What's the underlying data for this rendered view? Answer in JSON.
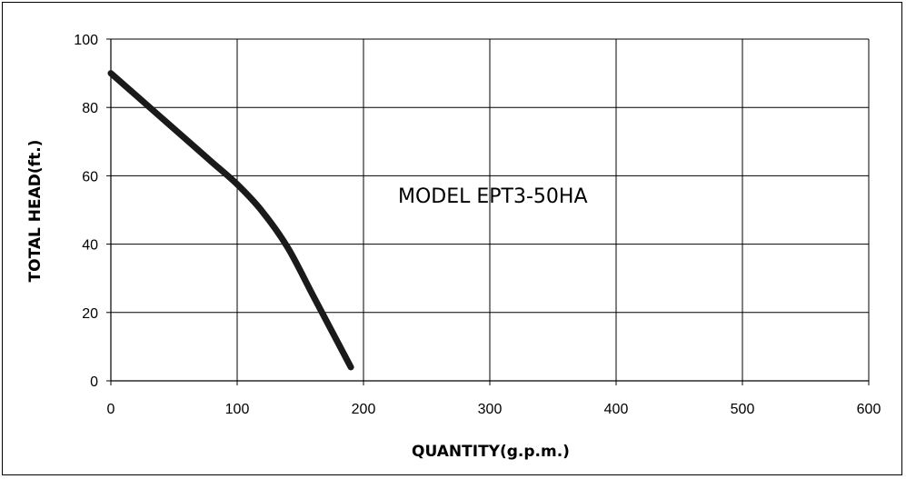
{
  "chart_data": {
    "type": "line",
    "xlabel": "QUANTITY(g.p.m.)",
    "ylabel": "TOTAL HEAD(ft.)",
    "xlim": [
      0,
      600
    ],
    "ylim": [
      0,
      100
    ],
    "x_ticks": [
      0,
      100,
      200,
      300,
      400,
      500,
      600
    ],
    "y_ticks": [
      0,
      20,
      40,
      60,
      80,
      100
    ],
    "grid": true,
    "annotation": "MODEL EPT3-50HA",
    "series": [
      {
        "color": "#1a1a1a",
        "x": [
          0,
          20,
          40,
          60,
          80,
          100,
          120,
          140,
          160,
          180,
          190
        ],
        "y": [
          90,
          83.5,
          77,
          70.5,
          64,
          57.5,
          49.5,
          39,
          25,
          11,
          4
        ]
      }
    ]
  }
}
